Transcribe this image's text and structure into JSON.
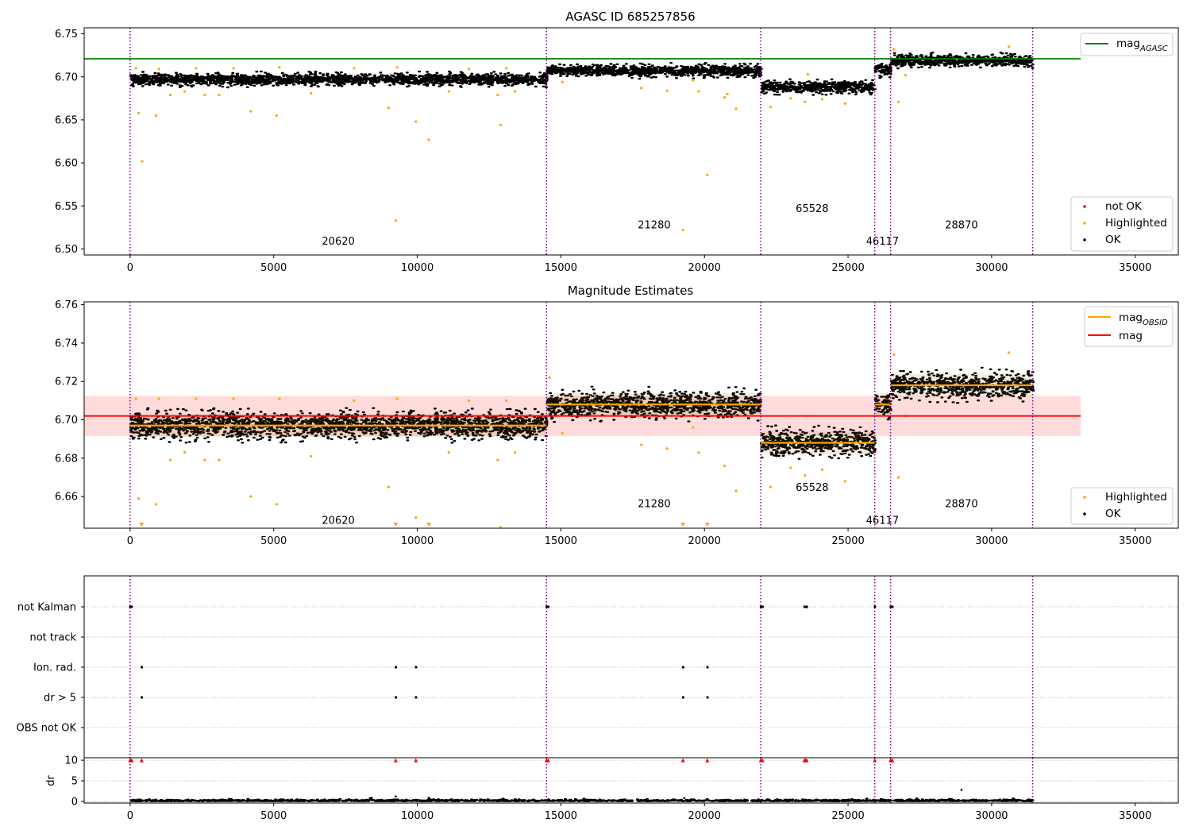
{
  "colors": {
    "ok": "#000000",
    "highlighted": "#FFA500",
    "not_ok": "#FF0000",
    "mag_agasc": "#008000",
    "mag_obsid": "#FFA500",
    "mag": "#FF0000",
    "mag_band": "#FFD5D5",
    "obsid_boundary": "#800080",
    "grid": "#B0B0B0"
  },
  "chart_data": [
    {
      "type": "scatter",
      "title": "AGASC ID 685257856",
      "x_ticks": [
        "0",
        "5000",
        "10000",
        "15000",
        "20000",
        "25000",
        "30000",
        "35000"
      ],
      "x_tick_values": [
        0,
        5000,
        10000,
        15000,
        20000,
        25000,
        30000,
        35000
      ],
      "xlim": [
        -1600,
        36500
      ],
      "ylim": [
        6.493,
        6.757
      ],
      "y_ticks": [
        "6.50",
        "6.55",
        "6.60",
        "6.65",
        "6.70",
        "6.75"
      ],
      "y_tick_values": [
        6.5,
        6.55,
        6.6,
        6.65,
        6.7,
        6.75
      ],
      "obsid_boundaries": [
        0,
        14500,
        21960,
        25930,
        26480,
        31430
      ],
      "obsid_labels": [
        {
          "text": "20620",
          "x": 7250,
          "y": 6.505
        },
        {
          "text": "21280",
          "x": 18250,
          "y": 6.524
        },
        {
          "text": "65528",
          "x": 23750,
          "y": 6.543
        },
        {
          "text": "46117",
          "x": 26200,
          "y": 6.505
        },
        {
          "text": "28870",
          "x": 28950,
          "y": 6.524
        }
      ],
      "segments": [
        {
          "obsid": "20620",
          "x0": 0,
          "x1": 14500,
          "mean": 6.697,
          "spread": 0.006
        },
        {
          "obsid": "21280",
          "x0": 14500,
          "x1": 21960,
          "mean": 6.707,
          "spread": 0.006
        },
        {
          "obsid": "65528",
          "x0": 21960,
          "x1": 25930,
          "mean": 6.688,
          "spread": 0.006
        },
        {
          "obsid": "46117",
          "x0": 25930,
          "x1": 26480,
          "mean": 6.708,
          "spread": 0.006
        },
        {
          "obsid": "28870",
          "x0": 26480,
          "x1": 31430,
          "mean": 6.719,
          "spread": 0.006
        }
      ],
      "highlighted_points": [
        [
          300,
          6.658
        ],
        [
          420,
          6.602
        ],
        [
          900,
          6.655
        ],
        [
          4200,
          6.66
        ],
        [
          5100,
          6.655
        ],
        [
          9000,
          6.664
        ],
        [
          9250,
          6.533
        ],
        [
          9950,
          6.648
        ],
        [
          10400,
          6.627
        ],
        [
          12900,
          6.644
        ],
        [
          1400,
          6.679
        ],
        [
          1900,
          6.683
        ],
        [
          2600,
          6.679
        ],
        [
          3100,
          6.679
        ],
        [
          6300,
          6.681
        ],
        [
          11100,
          6.683
        ],
        [
          12800,
          6.679
        ],
        [
          13400,
          6.683
        ],
        [
          15050,
          6.694
        ],
        [
          17800,
          6.687
        ],
        [
          18700,
          6.684
        ],
        [
          19250,
          6.522
        ],
        [
          19800,
          6.683
        ],
        [
          20100,
          6.586
        ],
        [
          20700,
          6.676
        ],
        [
          21100,
          6.663
        ],
        [
          20800,
          6.68
        ],
        [
          22300,
          6.665
        ],
        [
          23000,
          6.675
        ],
        [
          23500,
          6.671
        ],
        [
          24100,
          6.674
        ],
        [
          24900,
          6.669
        ],
        [
          26750,
          6.671
        ],
        [
          30600,
          6.735
        ],
        [
          26600,
          6.732
        ],
        [
          27000,
          6.702
        ],
        [
          200,
          6.71
        ],
        [
          1000,
          6.709
        ],
        [
          2300,
          6.71
        ],
        [
          3600,
          6.71
        ],
        [
          5200,
          6.711
        ],
        [
          7800,
          6.71
        ],
        [
          9300,
          6.711
        ],
        [
          11800,
          6.709
        ],
        [
          13100,
          6.71
        ],
        [
          23600,
          6.703
        ],
        [
          19600,
          6.696
        ]
      ],
      "legend": [
        "not OK",
        "Highlighted",
        "OK"
      ],
      "lines": [
        {
          "name": "mag_AGASC",
          "label_main": "mag",
          "label_sub": "AGASC",
          "y": 6.721,
          "x0": -1600,
          "x1": 33100
        }
      ]
    },
    {
      "type": "scatter",
      "title": "Magnitude Estimates",
      "x_ticks": [
        "0",
        "5000",
        "10000",
        "15000",
        "20000",
        "25000",
        "30000",
        "35000"
      ],
      "x_tick_values": [
        0,
        5000,
        10000,
        15000,
        20000,
        25000,
        30000,
        35000
      ],
      "xlim": [
        -1600,
        36500
      ],
      "ylim": [
        6.6435,
        6.7615
      ],
      "y_ticks": [
        "6.66",
        "6.68",
        "6.70",
        "6.72",
        "6.74",
        "6.76"
      ],
      "y_tick_values": [
        6.66,
        6.68,
        6.7,
        6.72,
        6.74,
        6.76
      ],
      "obsid_boundaries": [
        0,
        14500,
        21960,
        25930,
        26480,
        31430
      ],
      "obsid_labels": [
        {
          "text": "20620",
          "x": 7250,
          "y": 6.6458
        },
        {
          "text": "21280",
          "x": 18250,
          "y": 6.6545
        },
        {
          "text": "65528",
          "x": 23750,
          "y": 6.663
        },
        {
          "text": "46117",
          "x": 26200,
          "y": 6.6458
        },
        {
          "text": "28870",
          "x": 28950,
          "y": 6.6545
        }
      ],
      "segments": [
        {
          "obsid": "20620",
          "x0": 0,
          "x1": 14500,
          "mean": 6.697,
          "spread": 0.006
        },
        {
          "obsid": "21280",
          "x0": 14500,
          "x1": 21960,
          "mean": 6.708,
          "spread": 0.006
        },
        {
          "obsid": "65528",
          "x0": 21960,
          "x1": 25930,
          "mean": 6.688,
          "spread": 0.006
        },
        {
          "obsid": "46117",
          "x0": 25930,
          "x1": 26480,
          "mean": 6.708,
          "spread": 0.006
        },
        {
          "obsid": "28870",
          "x0": 26480,
          "x1": 31430,
          "mean": 6.718,
          "spread": 0.006
        }
      ],
      "mag_obsid": [
        {
          "x0": 0,
          "x1": 14500,
          "y": 6.697
        },
        {
          "x0": 14500,
          "x1": 21960,
          "y": 6.708
        },
        {
          "x0": 21960,
          "x1": 25930,
          "y": 6.688
        },
        {
          "x0": 25930,
          "x1": 26480,
          "y": 6.708
        },
        {
          "x0": 26480,
          "x1": 31430,
          "y": 6.718
        }
      ],
      "mag": {
        "y": 6.702,
        "band": [
          6.6915,
          6.7125
        ],
        "x0": -1600,
        "x1": 33100
      },
      "highlighted_points": [
        [
          300,
          6.659
        ],
        [
          900,
          6.656
        ],
        [
          4200,
          6.66
        ],
        [
          5100,
          6.656
        ],
        [
          9000,
          6.665
        ],
        [
          9950,
          6.649
        ],
        [
          12900,
          6.644
        ],
        [
          1400,
          6.679
        ],
        [
          1900,
          6.683
        ],
        [
          2600,
          6.679
        ],
        [
          3100,
          6.679
        ],
        [
          6300,
          6.681
        ],
        [
          11100,
          6.683
        ],
        [
          12800,
          6.679
        ],
        [
          13400,
          6.683
        ],
        [
          15050,
          6.693
        ],
        [
          17800,
          6.687
        ],
        [
          18700,
          6.685
        ],
        [
          19800,
          6.683
        ],
        [
          20700,
          6.676
        ],
        [
          21100,
          6.663
        ],
        [
          22300,
          6.665
        ],
        [
          23000,
          6.675
        ],
        [
          23500,
          6.671
        ],
        [
          24100,
          6.674
        ],
        [
          24900,
          6.668
        ],
        [
          26750,
          6.67
        ],
        [
          30600,
          6.735
        ],
        [
          26600,
          6.734
        ],
        [
          27000,
          6.702
        ],
        [
          200,
          6.711
        ],
        [
          1000,
          6.711
        ],
        [
          2300,
          6.711
        ],
        [
          3600,
          6.711
        ],
        [
          5200,
          6.711
        ],
        [
          7800,
          6.71
        ],
        [
          9300,
          6.711
        ],
        [
          11800,
          6.71
        ],
        [
          13100,
          6.71
        ],
        [
          23600,
          6.702
        ],
        [
          19600,
          6.696
        ],
        [
          14600,
          6.722
        ]
      ],
      "below_range_markers": [
        400,
        9250,
        10400,
        19250,
        20100
      ],
      "legend": [
        "Highlighted",
        "OK"
      ],
      "lines": [
        {
          "name": "mag_OBSID",
          "label_main": "mag",
          "label_sub": "OBSID"
        },
        {
          "name": "mag",
          "label_main": "mag"
        }
      ]
    },
    {
      "type": "scatter",
      "title": "",
      "x_ticks": [
        "0",
        "5000",
        "10000",
        "15000",
        "20000",
        "25000",
        "30000",
        "35000"
      ],
      "x_tick_values": [
        0,
        5000,
        10000,
        15000,
        20000,
        25000,
        30000,
        35000
      ],
      "xlim": [
        -1600,
        36500
      ],
      "flag_rows": [
        "not Kalman",
        "not track",
        "Ion. rad.",
        "dr > 5",
        "OBS not OK"
      ],
      "flag_points": {
        "not Kalman": [
          0,
          50,
          14500,
          14560,
          21960,
          22020,
          23480,
          23520,
          23560,
          25930,
          26480,
          26540
        ],
        "not track": [],
        "Ion. rad.": [
          400,
          9250,
          9950,
          19250,
          20100
        ],
        "dr > 5": [
          400,
          9250,
          9950,
          19250,
          20100
        ],
        "OBS not OK": []
      },
      "obsid_boundaries": [
        0,
        14500,
        21960,
        25930,
        26480,
        31430
      ]
    },
    {
      "type": "scatter",
      "title": "",
      "ylabel": "dr",
      "x_ticks": [
        "0",
        "5000",
        "10000",
        "15000",
        "20000",
        "25000",
        "30000",
        "35000"
      ],
      "x_tick_values": [
        0,
        5000,
        10000,
        15000,
        20000,
        25000,
        30000,
        35000
      ],
      "xlim": [
        -1600,
        36500
      ],
      "ylim": [
        -0.4,
        10.6
      ],
      "y_ticks": [
        "0",
        "5",
        "10"
      ],
      "y_tick_values": [
        0,
        5,
        10
      ],
      "dr_baseline": {
        "x0": 0,
        "x1": 31430,
        "y": 0.2
      },
      "dr_outliers": [
        [
          9250,
          1.2
        ],
        [
          10400,
          0.9
        ],
        [
          28950,
          2.8
        ],
        [
          19300,
          0.8
        ]
      ],
      "dr_clipped": [
        0,
        60,
        400,
        9250,
        9950,
        14500,
        14560,
        19250,
        20100,
        21960,
        22020,
        23480,
        23520,
        23560,
        25930,
        26480,
        26540
      ],
      "obsid_boundaries": [
        0,
        14500,
        21960,
        25930,
        26480,
        31430
      ]
    }
  ]
}
